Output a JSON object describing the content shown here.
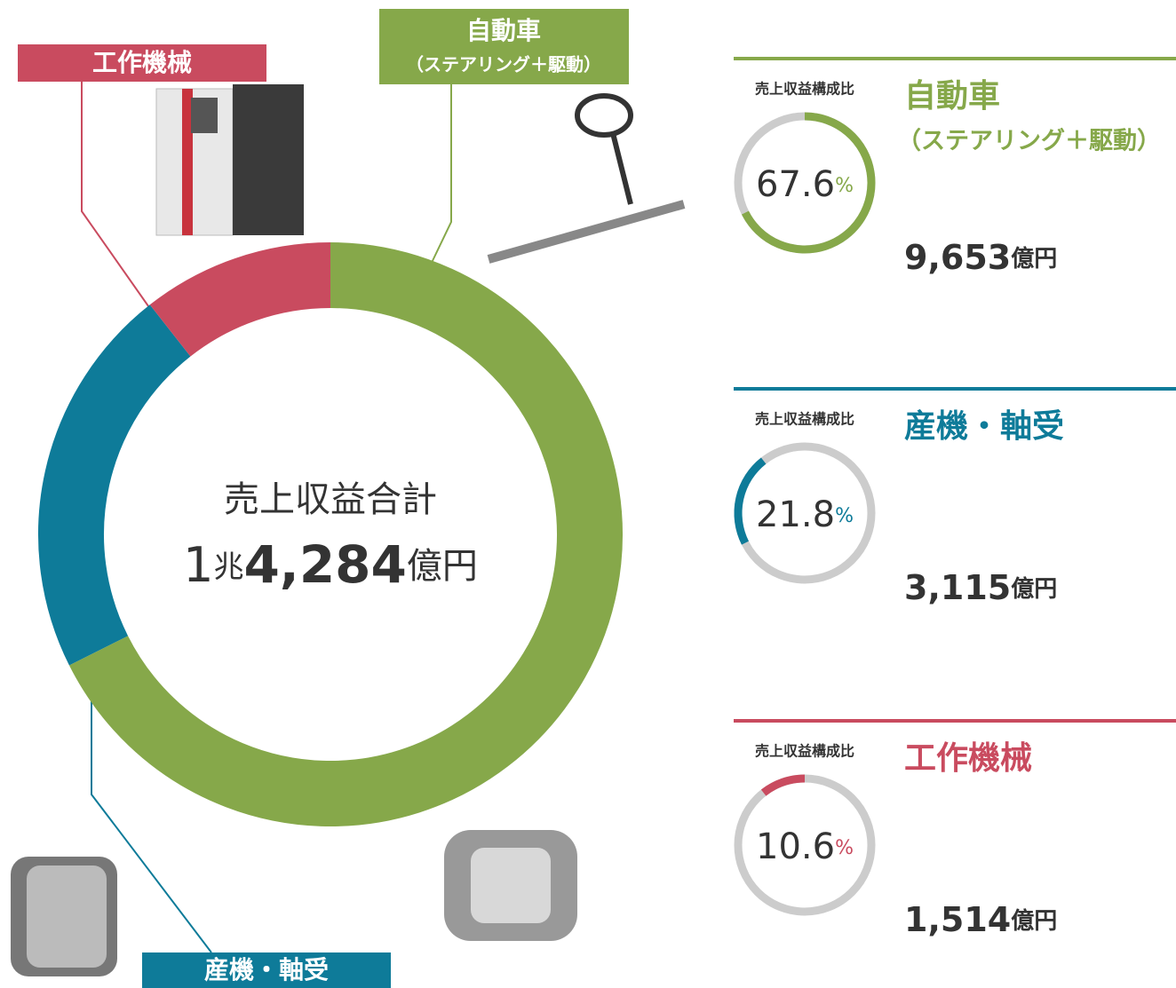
{
  "chart_data": {
    "type": "donut",
    "title": "売上収益合計",
    "total_parts": [
      "1",
      "兆",
      "4,284"
    ],
    "amount_unit": "億円",
    "share_label": "売上収益構成比",
    "percent_unit": "%",
    "categories": [
      "自動車",
      "産機・軸受",
      "工作機械"
    ],
    "category_notes": [
      "（ステアリング＋駆動）",
      null,
      null
    ],
    "values": [
      67.6,
      21.8,
      10.6
    ],
    "colors": [
      "#86a84a",
      "#0e7b99",
      "#c94b5f"
    ],
    "amounts": [
      9653,
      3115,
      1514
    ],
    "amount_labels": [
      "9,653",
      "3,115",
      "1,514"
    ],
    "track_color": "#cccccc"
  }
}
